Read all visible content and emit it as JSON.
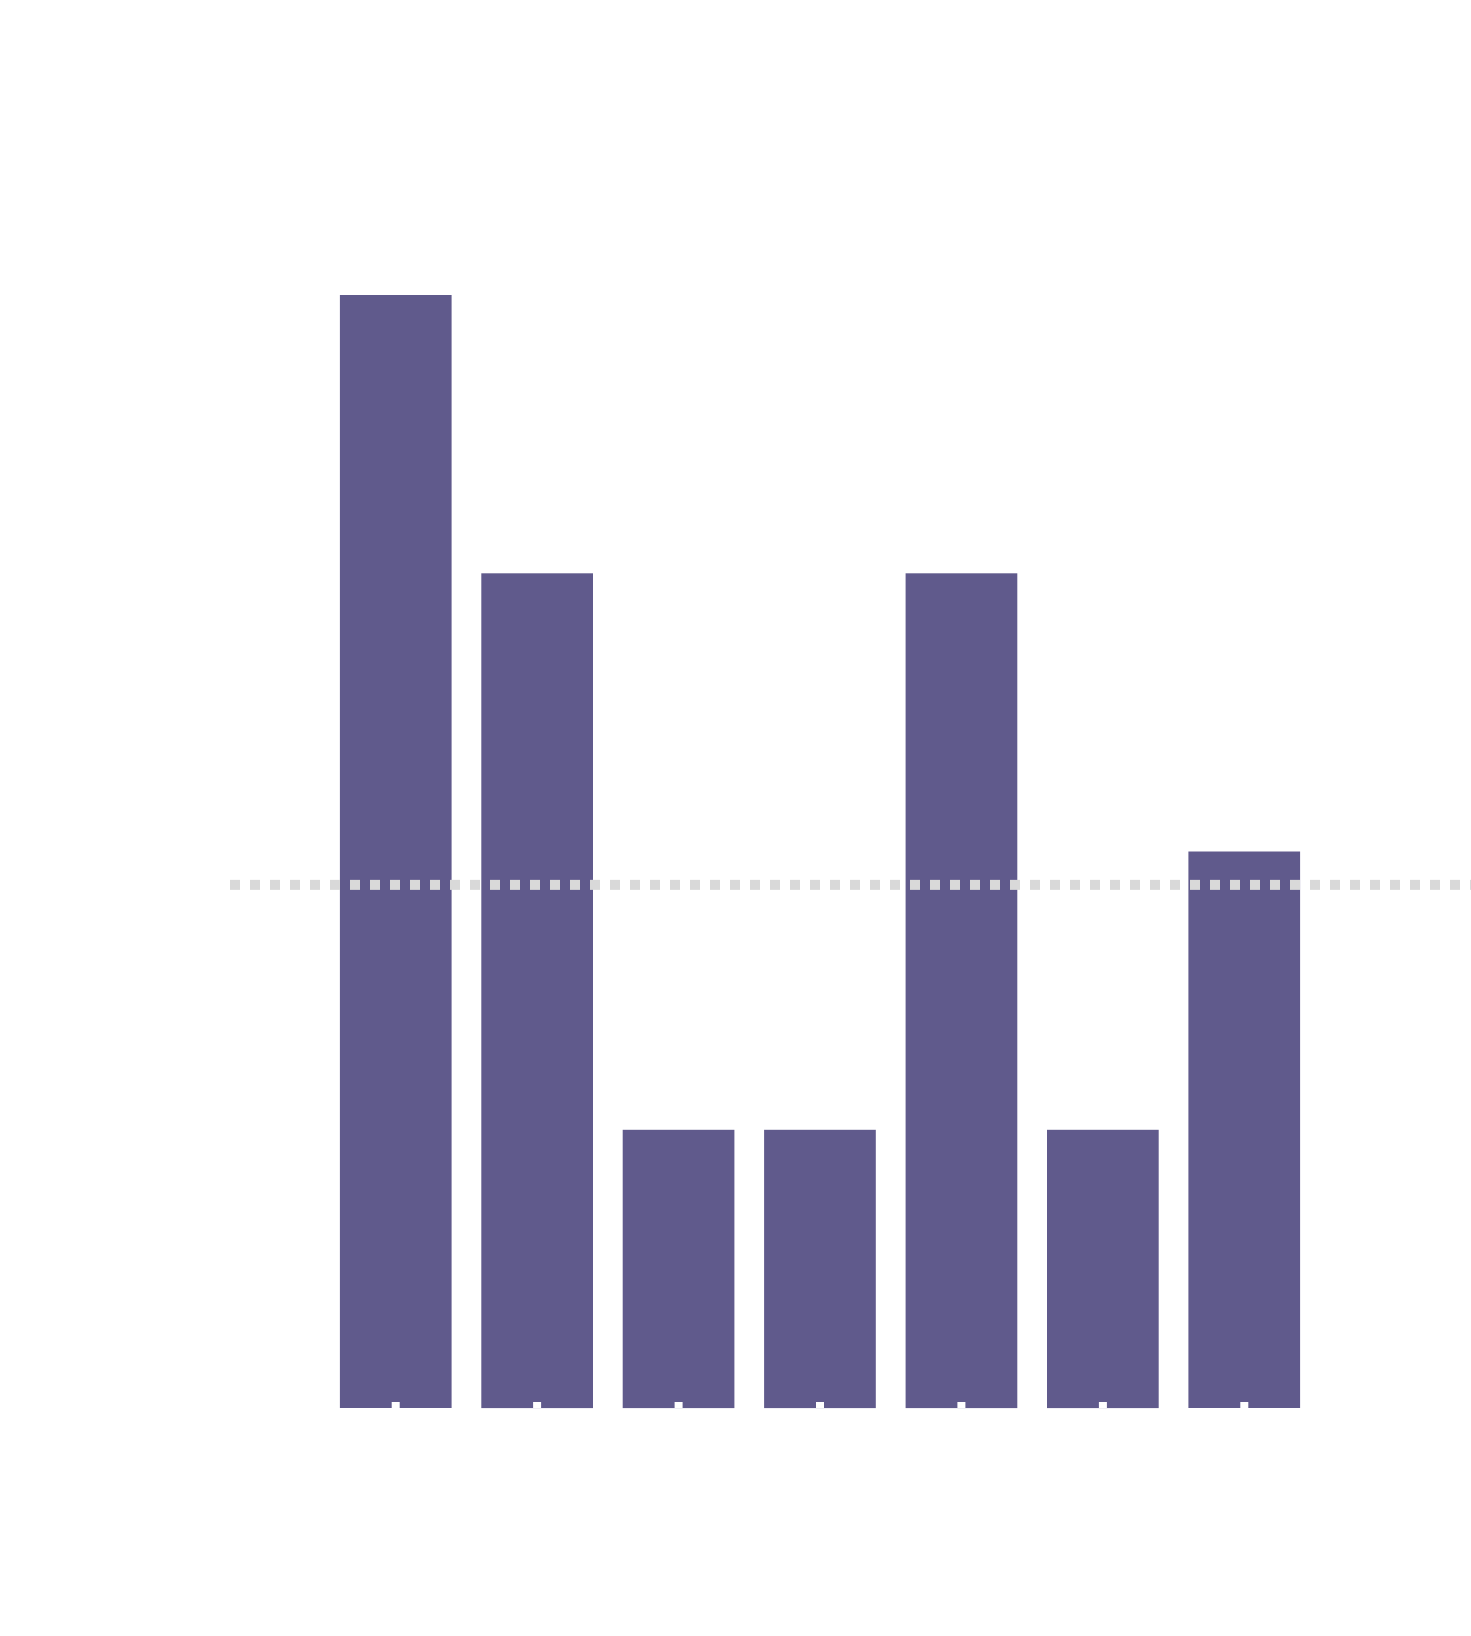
{
  "chart_data": {
    "type": "bar",
    "categories": [
      "",
      "",
      "",
      "",
      "",
      "",
      ""
    ],
    "values": [
      4,
      3,
      1,
      1,
      3,
      1,
      2
    ],
    "ylim": [
      0,
      4
    ],
    "reference_line": {
      "value": 1.88,
      "style": "dotted"
    },
    "grid": false,
    "legend": "none",
    "colors": {
      "bar": "#605a8c",
      "reference_line": "#d9d9d9",
      "background": "#ffffff"
    }
  }
}
